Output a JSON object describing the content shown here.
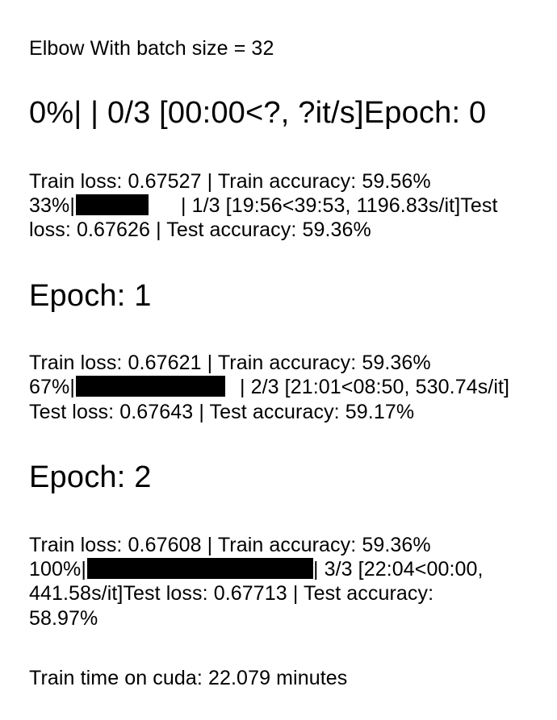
{
  "output": {
    "header": "Elbow With batch size = 32",
    "progress_start": "0%| | 0/3 [00:00<?, ?it/s]Epoch: 0",
    "epoch0": {
      "train": "Train loss: 0.67527 | Train accuracy: 59.56%",
      "pct": "33%|",
      "after_bar": "| 1/3 [19:56<39:53, 1196.83s/it]Test",
      "test": "loss: 0.67626 | Test accuracy: 59.36%",
      "progress": 0.333
    },
    "epoch1": {
      "heading": "Epoch: 1",
      "train": "Train loss: 0.67621 | Train accuracy: 59.36%",
      "pct": "67%|",
      "after_bar": "| 2/3 [21:01<08:50, 530.74s/it]",
      "test": "Test loss: 0.67643 | Test accuracy: 59.17%",
      "progress": 0.667
    },
    "epoch2": {
      "heading": "Epoch: 2",
      "train": "Train loss: 0.67608 | Train accuracy: 59.36%",
      "pct": "100%|",
      "after_bar": "| 3/3 [22:04<00:00,",
      "test_1": "441.58s/it]Test loss: 0.67713 | Test accuracy:",
      "test_2": "58.97%",
      "progress": 1.0
    },
    "footer": "Train time on cuda: 22.079 minutes"
  }
}
